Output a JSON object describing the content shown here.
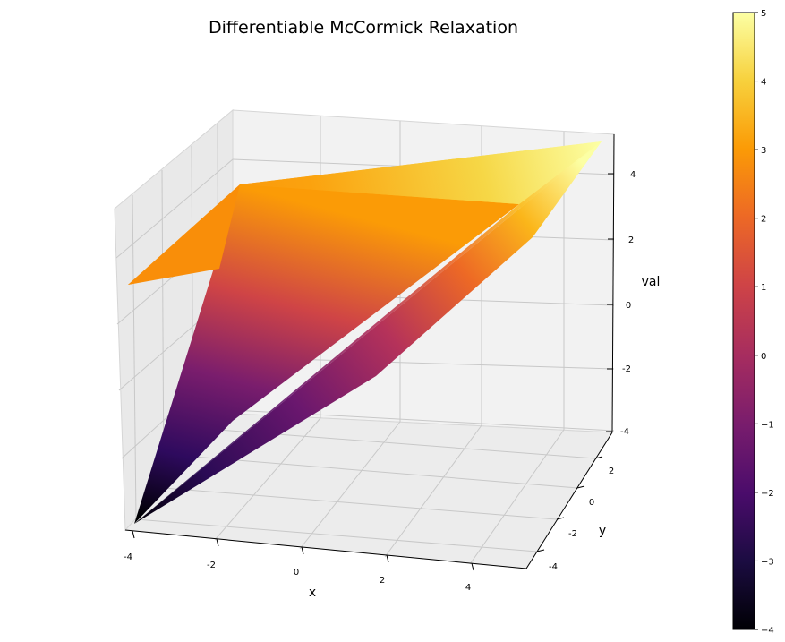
{
  "chart_data": {
    "type": "surface3d",
    "title": "Differentiable McCormick Relaxation",
    "xlabel": "x",
    "ylabel": "y",
    "zlabel": "val",
    "x_range": [
      -4,
      5
    ],
    "y_range": [
      -4,
      3
    ],
    "z_range": [
      -4,
      5
    ],
    "x_ticks": [
      "-4",
      "-2",
      "0",
      "2",
      "4"
    ],
    "y_ticks": [
      "-4",
      "-2",
      "0",
      "2"
    ],
    "z_ticks": [
      "-4",
      "-2",
      "0",
      "2",
      "4"
    ],
    "colormap": "inferno",
    "grid": true,
    "colorbar": {
      "min": -4,
      "max": 5,
      "ticks": [
        "−4",
        "−3",
        "−2",
        "−1",
        "0",
        "1",
        "2",
        "3",
        "4",
        "5"
      ]
    },
    "surface_vertices": [
      {
        "x": -4,
        "y": -4,
        "val": -4
      },
      {
        "x": 5,
        "y": -4,
        "val": 5
      },
      {
        "x": 5,
        "y": 3,
        "val": 5
      },
      {
        "x": -4,
        "y": 3,
        "val": 3
      }
    ]
  },
  "colors": {
    "pane": "#f2f2f2",
    "grid": "#c8c8c8",
    "axis": "#000000"
  }
}
